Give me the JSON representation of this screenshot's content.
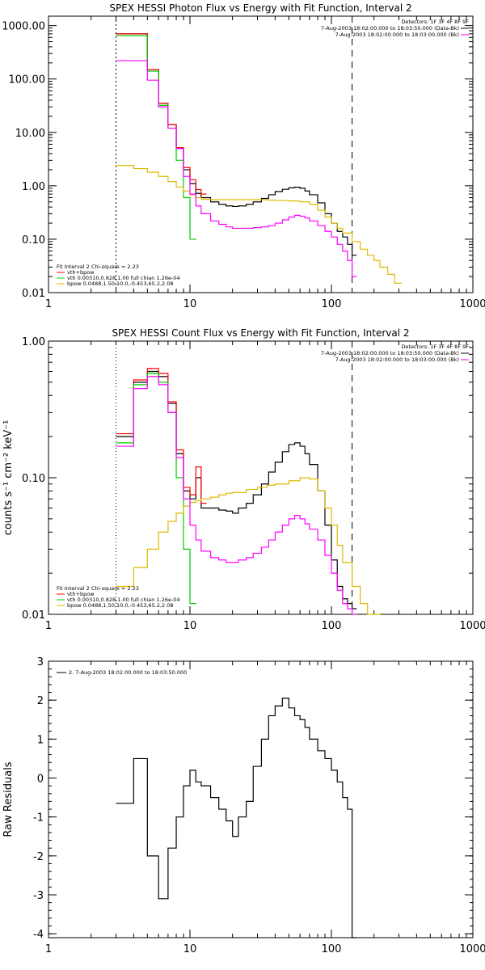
{
  "colors": {
    "total": "#000000",
    "fit": "#ff0000",
    "vth": "#00cc00",
    "bpow": "#ddbb00",
    "bk": "#ff00ff"
  },
  "chart_data": [
    {
      "type": "line",
      "title": "SPEX HESSI Photon Flux vs Energy with Fit Function, Interval 2",
      "xlabel": "",
      "ylabel": "",
      "xscale": "log",
      "yscale": "log",
      "xlim": [
        1,
        1000
      ],
      "ylim": [
        0.01,
        1500
      ],
      "x_ticks": [
        "1",
        "10",
        "100",
        "1000"
      ],
      "y_ticks": [
        "0.01",
        "0.10",
        "1.00",
        "10.00",
        "100.00",
        "1000.00"
      ],
      "header": {
        "detectors": "Detectors: 1F 3F 4F 8F 9F",
        "line1": "7-Aug-2003 18:02:00.000 to 18:03:50.000 (Data-Bk)",
        "line2": "7-Aug-2003 18:02:00.000 to 18:03:00.000 (Bk)"
      },
      "fit_info": {
        "title": "Fit Interval 2   Chi-square = 2.23",
        "entries": [
          {
            "label": "vth+bpow",
            "color": "fit"
          },
          {
            "label": "vth 0.00310,0.828,1.00  full chian 1.26e-04",
            "color": "vth"
          },
          {
            "label": "bpow 0.0488,1.50,10.0,-0.453,65.2,2.08",
            "color": "bpow"
          }
        ]
      },
      "lines": [
        {
          "color": "#000000",
          "dash": "2,3",
          "x": 3
        },
        {
          "color": "#000000",
          "dash": "8,6",
          "x": 140
        }
      ],
      "series": [
        {
          "color": "total",
          "x": [
            3,
            4,
            5,
            6,
            7,
            8,
            9,
            10,
            11,
            12,
            14,
            16,
            18,
            20,
            22,
            25,
            28,
            32,
            36,
            40,
            45,
            50,
            55,
            60,
            65,
            70,
            80,
            90,
            100,
            110,
            120,
            130,
            140
          ],
          "y": [
            700,
            700,
            150,
            35,
            14,
            5,
            2,
            1.1,
            0.72,
            0.6,
            0.5,
            0.45,
            0.42,
            0.41,
            0.42,
            0.45,
            0.5,
            0.58,
            0.68,
            0.78,
            0.86,
            0.92,
            0.94,
            0.9,
            0.8,
            0.68,
            0.48,
            0.3,
            0.2,
            0.14,
            0.11,
            0.08,
            0.05
          ]
        },
        {
          "color": "fit",
          "x": [
            3,
            4,
            5,
            6,
            7,
            8,
            9,
            10,
            11,
            12
          ],
          "y": [
            700,
            700,
            150,
            35,
            14,
            5.2,
            2.2,
            1.3,
            0.85,
            0.7
          ]
        },
        {
          "color": "vth",
          "x": [
            3,
            4,
            5,
            6,
            7,
            8,
            9,
            10
          ],
          "y": [
            650,
            650,
            140,
            32,
            12,
            3,
            0.6,
            0.1
          ]
        },
        {
          "color": "bpow",
          "x": [
            3,
            4,
            5,
            6,
            7,
            8,
            9,
            10,
            11,
            12,
            14,
            16,
            18,
            20,
            25,
            30,
            35,
            40,
            50,
            60,
            70,
            80,
            90,
            100,
            110,
            120,
            140,
            160,
            180,
            200,
            220,
            250,
            280
          ],
          "y": [
            2.4,
            2.1,
            1.8,
            1.5,
            1.2,
            0.95,
            0.8,
            0.68,
            0.6,
            0.56,
            0.55,
            0.55,
            0.55,
            0.55,
            0.55,
            0.55,
            0.54,
            0.53,
            0.52,
            0.5,
            0.45,
            0.35,
            0.26,
            0.2,
            0.16,
            0.13,
            0.09,
            0.065,
            0.05,
            0.04,
            0.03,
            0.022,
            0.015
          ]
        },
        {
          "color": "bk",
          "x": [
            3,
            4,
            5,
            6,
            7,
            8,
            9,
            10,
            11,
            12,
            14,
            16,
            18,
            20,
            22,
            25,
            28,
            32,
            36,
            40,
            45,
            50,
            55,
            60,
            65,
            70,
            80,
            90,
            100,
            110,
            120,
            130,
            140
          ],
          "y": [
            220,
            220,
            95,
            30,
            12,
            5,
            1.5,
            0.7,
            0.42,
            0.3,
            0.22,
            0.19,
            0.17,
            0.16,
            0.16,
            0.16,
            0.165,
            0.17,
            0.18,
            0.2,
            0.23,
            0.26,
            0.28,
            0.27,
            0.25,
            0.22,
            0.18,
            0.14,
            0.11,
            0.08,
            0.06,
            0.04,
            0.02
          ]
        }
      ]
    },
    {
      "type": "line",
      "title": "SPEX HESSI Count Flux vs Energy with Fit Function, Interval 2",
      "xlabel": "",
      "ylabel": "counts s⁻¹ cm⁻² keV⁻¹",
      "xscale": "log",
      "yscale": "log",
      "xlim": [
        1,
        1000
      ],
      "ylim": [
        0.01,
        1.0
      ],
      "x_ticks": [
        "1",
        "10",
        "100",
        "1000"
      ],
      "y_ticks": [
        "0.01",
        "0.10",
        "1.00"
      ],
      "header": {
        "detectors": "Detectors: 1F 3F 4F 8F 9F",
        "line1": "7-Aug-2003 18:02:00.000 to 18:03:50.000 (Data-Bk)",
        "line2": "7-Aug-2003 18:02:00.000 to 18:03:00.000 (Bk)"
      },
      "fit_info": {
        "title": "Fit Interval 2   Chi-square = 2.23",
        "entries": [
          {
            "label": "vth+bpow",
            "color": "fit"
          },
          {
            "label": "vth 0.00310,0.828,1.00  full chian 1.26e-04",
            "color": "vth"
          },
          {
            "label": "bpow 0.0488,1.50,10.0,-0.453,65.2,2.08",
            "color": "bpow"
          }
        ]
      },
      "lines": [
        {
          "color": "#000000",
          "dash": "1,3",
          "x": 3
        },
        {
          "color": "#000000",
          "dash": "8,6",
          "x": 140
        }
      ],
      "series": [
        {
          "color": "total",
          "x": [
            3,
            4,
            5,
            6,
            7,
            8,
            9,
            10,
            11,
            12,
            14,
            16,
            18,
            20,
            22,
            25,
            28,
            32,
            36,
            40,
            45,
            50,
            55,
            60,
            65,
            70,
            80,
            90,
            100,
            110,
            120,
            130,
            140
          ],
          "y": [
            0.2,
            0.5,
            0.6,
            0.55,
            0.35,
            0.15,
            0.08,
            0.07,
            0.1,
            0.06,
            0.06,
            0.058,
            0.057,
            0.055,
            0.06,
            0.065,
            0.075,
            0.09,
            0.11,
            0.13,
            0.155,
            0.175,
            0.18,
            0.17,
            0.15,
            0.125,
            0.08,
            0.045,
            0.025,
            0.016,
            0.013,
            0.012,
            0.011
          ]
        },
        {
          "color": "fit",
          "x": [
            3,
            4,
            5,
            6,
            7,
            8,
            9,
            10,
            11,
            12
          ],
          "y": [
            0.21,
            0.52,
            0.63,
            0.58,
            0.36,
            0.16,
            0.085,
            0.075,
            0.12,
            0.065
          ]
        },
        {
          "color": "vth",
          "x": [
            3,
            4,
            5,
            6,
            7,
            8,
            9,
            10
          ],
          "y": [
            0.18,
            0.48,
            0.58,
            0.5,
            0.3,
            0.1,
            0.03,
            0.012
          ]
        },
        {
          "color": "bpow",
          "x": [
            3,
            4,
            5,
            6,
            7,
            8,
            9,
            10,
            11,
            12,
            14,
            16,
            18,
            20,
            25,
            30,
            35,
            40,
            50,
            60,
            70,
            80,
            90,
            100,
            110,
            120,
            140,
            160,
            180,
            200
          ],
          "y": [
            0.016,
            0.022,
            0.03,
            0.04,
            0.048,
            0.055,
            0.062,
            0.066,
            0.068,
            0.07,
            0.072,
            0.075,
            0.077,
            0.078,
            0.082,
            0.085,
            0.088,
            0.09,
            0.095,
            0.1,
            0.098,
            0.08,
            0.06,
            0.045,
            0.032,
            0.024,
            0.016,
            0.012,
            0.01,
            0.009
          ]
        },
        {
          "color": "bk",
          "x": [
            3,
            4,
            5,
            6,
            7,
            8,
            9,
            10,
            11,
            12,
            14,
            16,
            18,
            20,
            22,
            25,
            28,
            32,
            36,
            40,
            45,
            50,
            55,
            60,
            65,
            70,
            80,
            90,
            100,
            110,
            120,
            130,
            140
          ],
          "y": [
            0.17,
            0.45,
            0.55,
            0.48,
            0.3,
            0.14,
            0.07,
            0.045,
            0.035,
            0.029,
            0.026,
            0.025,
            0.024,
            0.024,
            0.025,
            0.026,
            0.028,
            0.031,
            0.035,
            0.04,
            0.045,
            0.05,
            0.053,
            0.05,
            0.046,
            0.042,
            0.035,
            0.027,
            0.02,
            0.015,
            0.012,
            0.011,
            0.01
          ]
        }
      ]
    },
    {
      "type": "line",
      "title": "",
      "xlabel": "",
      "ylabel": "Raw Residuals",
      "xscale": "log",
      "yscale": "linear",
      "xlim": [
        1,
        1000
      ],
      "ylim": [
        -4.1,
        3
      ],
      "x_ticks": [
        "1",
        "10",
        "100",
        "1000"
      ],
      "y_ticks": [
        "-4",
        "-3",
        "-2",
        "-1",
        "0",
        "1",
        "2",
        "3"
      ],
      "legend": "2.  7-Aug-2003 18:02:00.000 to 18:03:50.000",
      "series": [
        {
          "color": "total",
          "x": [
            3,
            4,
            5,
            6,
            7,
            8,
            9,
            10,
            11,
            12,
            14,
            16,
            18,
            20,
            22,
            25,
            28,
            32,
            36,
            40,
            45,
            50,
            55,
            60,
            65,
            70,
            80,
            90,
            100,
            110,
            120,
            130,
            140
          ],
          "y": [
            -0.65,
            0.5,
            -2.0,
            -3.1,
            -1.8,
            -1.0,
            -0.2,
            0.2,
            -0.1,
            -0.2,
            -0.5,
            -0.8,
            -1.1,
            -1.5,
            -1.0,
            -0.6,
            0.3,
            1.0,
            1.6,
            1.85,
            2.05,
            1.8,
            1.6,
            1.5,
            1.3,
            1.0,
            0.7,
            0.5,
            0.2,
            -0.1,
            -0.5,
            -0.8,
            -4.1
          ]
        }
      ]
    }
  ]
}
